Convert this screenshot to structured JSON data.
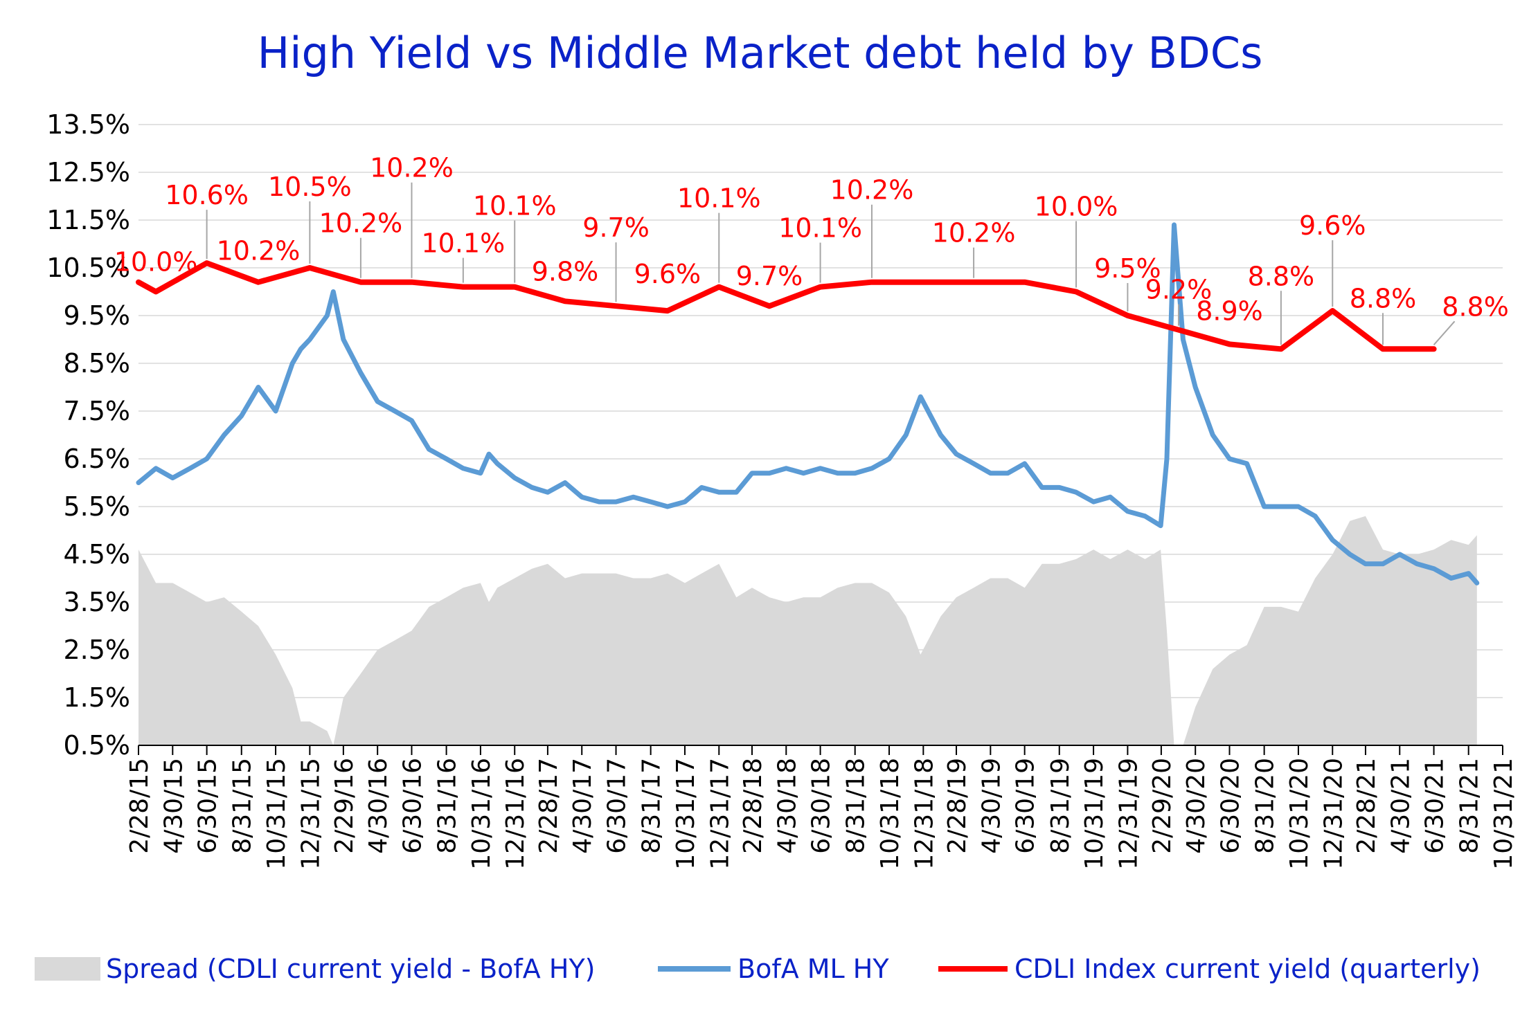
{
  "title": "High Yield  vs  Middle Market debt held by BDCs",
  "legend": {
    "spread": "Spread (CDLI current yield - BofA HY)",
    "hy": "BofA ML HY",
    "cdli": "CDLI Index current yield (quarterly)"
  },
  "colors": {
    "title": "#0a22c8",
    "cdli": "#ff0000",
    "hy": "#5b9bd5",
    "spread": "#d9d9d9",
    "grid": "#d9d9d9",
    "axis": "#000000"
  },
  "chart_data": {
    "type": "line",
    "y_axis": {
      "min": 0.5,
      "max": 13.5,
      "unit": "%",
      "tick_labels": [
        "13.5%",
        "12.5%",
        "11.5%",
        "10.5%",
        "9.5%",
        "8.5%",
        "7.5%",
        "6.5%",
        "5.5%",
        "4.5%",
        "3.5%",
        "2.5%",
        "1.5%",
        "0.5%"
      ]
    },
    "x_axis": {
      "min": "2/28/15",
      "max": "10/31/21",
      "tick_labels": [
        "2/28/15",
        "4/30/15",
        "6/30/15",
        "8/31/15",
        "10/31/15",
        "12/31/15",
        "2/29/16",
        "4/30/16",
        "6/30/16",
        "8/31/16",
        "10/31/16",
        "12/31/16",
        "2/28/17",
        "4/30/17",
        "6/30/17",
        "8/31/17",
        "10/31/17",
        "12/31/17",
        "2/28/18",
        "4/30/18",
        "6/30/18",
        "8/31/18",
        "10/31/18",
        "12/31/18",
        "2/28/19",
        "4/30/19",
        "6/30/19",
        "8/31/19",
        "10/31/19",
        "12/31/19",
        "2/29/20",
        "4/30/20",
        "6/30/20",
        "8/31/20",
        "10/31/20",
        "12/31/20",
        "2/28/21",
        "4/30/21",
        "6/30/21",
        "8/31/21",
        "10/31/21"
      ]
    },
    "grid": "horizontal",
    "legend_position": "bottom",
    "series": [
      {
        "name": "CDLI Index current yield (quarterly)",
        "kind": "line",
        "x": [
          "2/28/15",
          "3/31/15",
          "6/30/15",
          "9/30/15",
          "12/31/15",
          "3/31/16",
          "6/30/16",
          "9/30/16",
          "12/31/16",
          "3/31/17",
          "6/30/17",
          "9/30/17",
          "12/31/17",
          "3/31/18",
          "6/30/18",
          "9/30/18",
          "12/31/18",
          "3/31/19",
          "6/30/19",
          "9/30/19",
          "12/31/19",
          "3/31/20",
          "6/30/20",
          "9/30/20",
          "12/31/20",
          "3/31/21",
          "6/30/21"
        ],
        "y": [
          10.2,
          10.0,
          10.6,
          10.2,
          10.5,
          10.2,
          10.2,
          10.1,
          10.1,
          9.8,
          9.7,
          9.6,
          10.1,
          9.7,
          10.1,
          10.2,
          10.2,
          10.2,
          10.2,
          10.0,
          9.5,
          9.2,
          8.9,
          8.8,
          9.6,
          8.8,
          8.8
        ],
        "annotations": [
          {
            "x": "3/31/15",
            "label": "10.0%"
          },
          {
            "x": "6/30/15",
            "label": "10.6%"
          },
          {
            "x": "9/30/15",
            "label": "10.2%"
          },
          {
            "x": "12/31/15",
            "label": "10.5%"
          },
          {
            "x": "3/31/16",
            "label": "10.2%"
          },
          {
            "x": "6/30/16",
            "label": "10.2%"
          },
          {
            "x": "9/30/16",
            "label": "10.1%"
          },
          {
            "x": "12/31/16",
            "label": "10.1%"
          },
          {
            "x": "3/31/17",
            "label": "9.8%"
          },
          {
            "x": "6/30/17",
            "label": "9.7%"
          },
          {
            "x": "9/30/17",
            "label": "9.6%"
          },
          {
            "x": "12/31/17",
            "label": "10.1%"
          },
          {
            "x": "3/31/18",
            "label": "9.7%"
          },
          {
            "x": "6/30/18",
            "label": "10.1%"
          },
          {
            "x": "9/30/18",
            "label": "10.2%"
          },
          {
            "x": "3/31/19",
            "label": "10.2%"
          },
          {
            "x": "9/30/19",
            "label": "10.0%"
          },
          {
            "x": "12/31/19",
            "label": "9.5%"
          },
          {
            "x": "3/31/20",
            "label": "9.2%"
          },
          {
            "x": "6/30/20",
            "label": "8.9%"
          },
          {
            "x": "9/30/20",
            "label": "8.8%"
          },
          {
            "x": "12/31/20",
            "label": "9.6%"
          },
          {
            "x": "3/31/21",
            "label": "8.8%"
          },
          {
            "x": "6/30/21",
            "label": "8.8%"
          }
        ]
      },
      {
        "name": "BofA ML HY",
        "kind": "line",
        "x": [
          "2/28/15",
          "3/31/15",
          "4/30/15",
          "5/31/15",
          "6/30/15",
          "7/31/15",
          "8/31/15",
          "9/30/15",
          "10/31/15",
          "11/30/15",
          "12/15/15",
          "12/31/15",
          "1/31/16",
          "2/11/16",
          "2/29/16",
          "3/31/16",
          "4/30/16",
          "5/31/16",
          "6/30/16",
          "7/31/16",
          "8/31/16",
          "9/30/16",
          "10/31/16",
          "11/15/16",
          "11/30/16",
          "12/31/16",
          "1/31/17",
          "2/28/17",
          "3/31/17",
          "4/30/17",
          "5/31/17",
          "6/30/17",
          "7/31/17",
          "8/31/17",
          "9/30/17",
          "10/31/17",
          "11/30/17",
          "12/31/17",
          "1/31/18",
          "2/28/18",
          "3/31/18",
          "4/30/18",
          "5/31/18",
          "6/30/18",
          "7/31/18",
          "8/31/18",
          "9/30/18",
          "10/31/18",
          "11/30/18",
          "12/26/18",
          "1/31/19",
          "2/28/19",
          "3/31/19",
          "4/30/19",
          "5/31/19",
          "6/30/19",
          "7/31/19",
          "8/31/19",
          "9/30/19",
          "10/31/19",
          "11/30/19",
          "12/31/19",
          "1/31/20",
          "2/28/20",
          "3/10/20",
          "3/23/20",
          "4/8/20",
          "4/30/20",
          "5/31/20",
          "6/30/20",
          "7/31/20",
          "8/31/20",
          "9/30/20",
          "10/31/20",
          "11/30/20",
          "12/31/20",
          "1/31/21",
          "2/28/21",
          "3/31/21",
          "4/30/21",
          "5/31/21",
          "6/30/21",
          "7/31/21",
          "8/31/21",
          "9/15/21"
        ],
        "y": [
          6.0,
          6.3,
          6.1,
          6.3,
          6.5,
          7.0,
          7.4,
          8.0,
          7.5,
          8.5,
          8.8,
          9.0,
          9.5,
          10.0,
          9.0,
          8.3,
          7.7,
          7.5,
          7.3,
          6.7,
          6.5,
          6.3,
          6.2,
          6.6,
          6.4,
          6.1,
          5.9,
          5.8,
          6.0,
          5.7,
          5.6,
          5.6,
          5.7,
          5.6,
          5.5,
          5.6,
          5.9,
          5.8,
          5.8,
          6.2,
          6.2,
          6.3,
          6.2,
          6.3,
          6.2,
          6.2,
          6.3,
          6.5,
          7.0,
          7.8,
          7.0,
          6.6,
          6.4,
          6.2,
          6.2,
          6.4,
          5.9,
          5.9,
          5.8,
          5.6,
          5.7,
          5.4,
          5.3,
          5.1,
          6.5,
          11.4,
          9.0,
          8.0,
          7.0,
          6.5,
          6.4,
          5.5,
          5.5,
          5.5,
          5.3,
          4.8,
          4.5,
          4.3,
          4.3,
          4.5,
          4.3,
          4.2,
          4.0,
          4.1,
          3.9
        ]
      },
      {
        "name": "Spread (CDLI current yield - BofA HY)",
        "kind": "area",
        "x": [
          "2/28/15",
          "3/31/15",
          "4/30/15",
          "5/31/15",
          "6/30/15",
          "7/31/15",
          "8/31/15",
          "9/30/15",
          "10/31/15",
          "11/30/15",
          "12/15/15",
          "12/31/15",
          "1/31/16",
          "2/11/16",
          "2/29/16",
          "3/31/16",
          "4/30/16",
          "5/31/16",
          "6/30/16",
          "7/31/16",
          "8/31/16",
          "9/30/16",
          "10/31/16",
          "11/15/16",
          "11/30/16",
          "12/31/16",
          "1/31/17",
          "2/28/17",
          "3/31/17",
          "4/30/17",
          "5/31/17",
          "6/30/17",
          "7/31/17",
          "8/31/17",
          "9/30/17",
          "10/31/17",
          "11/30/17",
          "12/31/17",
          "1/31/18",
          "2/28/18",
          "3/31/18",
          "4/30/18",
          "5/31/18",
          "6/30/18",
          "7/31/18",
          "8/31/18",
          "9/30/18",
          "10/31/18",
          "11/30/18",
          "12/26/18",
          "1/31/19",
          "2/28/19",
          "3/31/19",
          "4/30/19",
          "5/31/19",
          "6/30/19",
          "7/31/19",
          "8/31/19",
          "9/30/19",
          "10/31/19",
          "11/30/19",
          "12/31/19",
          "1/31/20",
          "2/28/20",
          "3/10/20",
          "3/23/20",
          "4/8/20",
          "4/30/20",
          "5/31/20",
          "6/30/20",
          "7/31/20",
          "8/31/20",
          "9/30/20",
          "10/31/20",
          "11/30/20",
          "12/31/20",
          "1/31/21",
          "2/28/21",
          "3/31/21",
          "4/30/21",
          "5/31/21",
          "6/30/21",
          "7/31/21",
          "8/31/21",
          "9/15/21"
        ],
        "y": [
          4.6,
          3.9,
          3.9,
          3.7,
          3.5,
          3.6,
          3.3,
          3.0,
          2.4,
          1.7,
          1.0,
          1.0,
          0.8,
          0.5,
          1.5,
          2.0,
          2.5,
          2.7,
          2.9,
          3.4,
          3.6,
          3.8,
          3.9,
          3.5,
          3.8,
          4.0,
          4.2,
          4.3,
          4.0,
          4.1,
          4.1,
          4.1,
          4.0,
          4.0,
          4.1,
          3.9,
          4.1,
          4.3,
          3.6,
          3.8,
          3.6,
          3.5,
          3.6,
          3.6,
          3.8,
          3.9,
          3.9,
          3.7,
          3.2,
          2.4,
          3.2,
          3.6,
          3.8,
          4.0,
          4.0,
          3.8,
          4.3,
          4.3,
          4.4,
          4.6,
          4.4,
          4.6,
          4.4,
          4.6,
          2.9,
          0.5,
          0.5,
          1.3,
          2.1,
          2.4,
          2.6,
          3.4,
          3.4,
          3.3,
          4.0,
          4.5,
          5.2,
          5.3,
          4.6,
          4.5,
          4.5,
          4.6,
          4.8,
          4.7,
          4.9
        ]
      }
    ]
  }
}
